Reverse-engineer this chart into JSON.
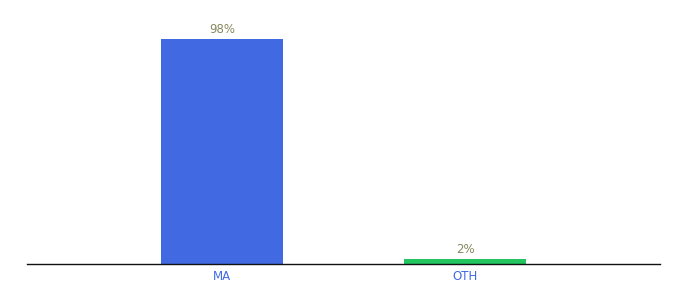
{
  "categories": [
    "MA",
    "OTH"
  ],
  "values": [
    98,
    2
  ],
  "bar_colors": [
    "#4169e1",
    "#22c55e"
  ],
  "labels": [
    "98%",
    "2%"
  ],
  "label_color": "#888860",
  "ylim": [
    0,
    106
  ],
  "background_color": "#ffffff",
  "bar_width": 0.5,
  "label_fontsize": 8.5,
  "tick_fontsize": 8.5,
  "tick_color_ma": "#4169e1",
  "tick_color_oth": "#4169e1",
  "xlim": [
    -0.8,
    1.8
  ]
}
